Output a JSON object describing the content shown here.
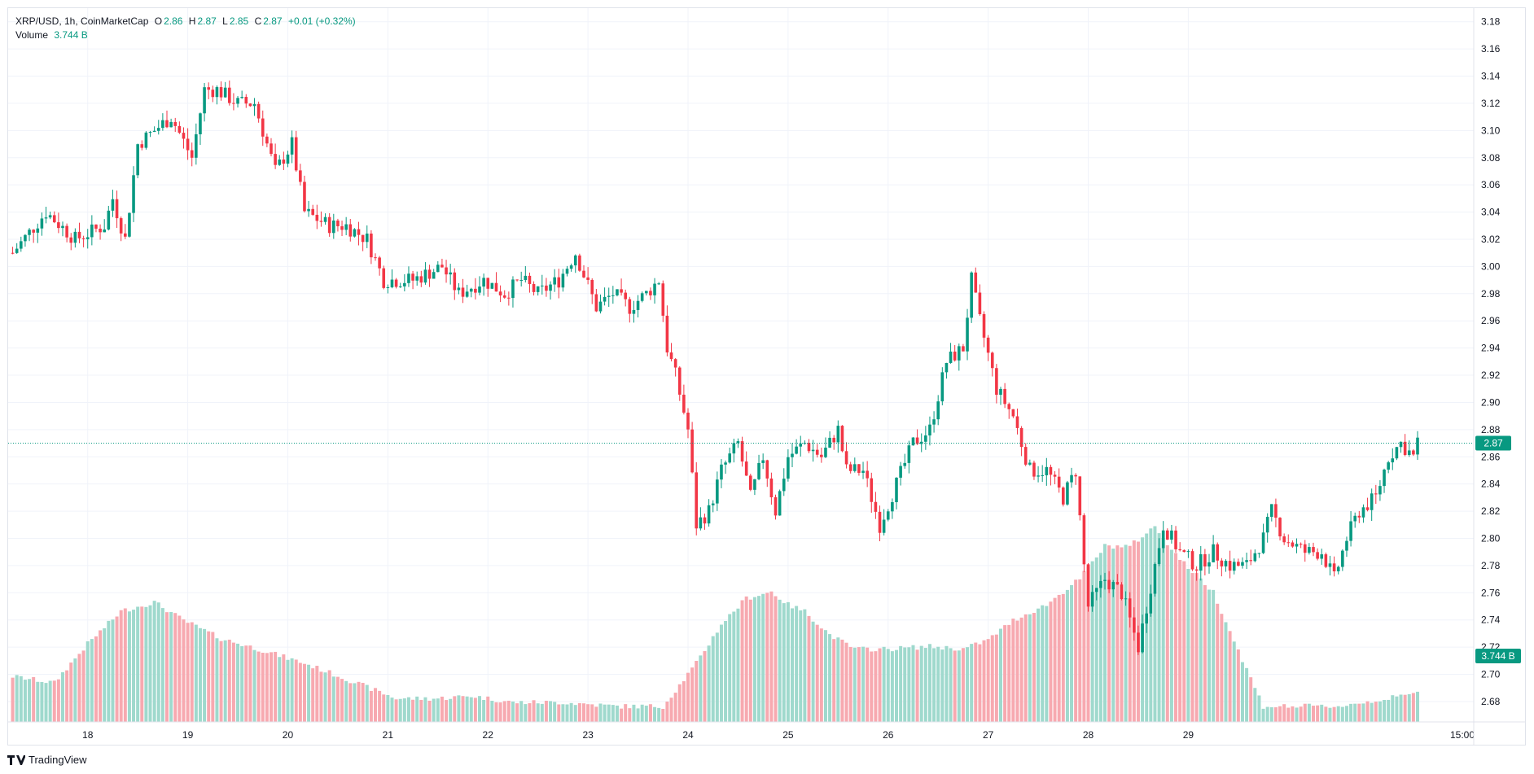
{
  "header": {
    "symbol_line": "XRP/USD, 1h, CoinMarketCap",
    "open_label": "O",
    "open_value": "2.86",
    "high_label": "H",
    "high_value": "2.87",
    "low_label": "L",
    "low_value": "2.85",
    "close_label": "C",
    "close_value": "2.87",
    "change": "+0.01 (+0.32%)",
    "volume_label": "Volume",
    "volume_value": "3.744 B"
  },
  "price_badge": "2.87",
  "volume_badge": "3.744 B",
  "brand": "TradingView",
  "colors": {
    "up": "#089981",
    "down": "#f23645",
    "vol_up": "#9fd9cd",
    "vol_down": "#f7a9b0",
    "grid": "#f0f3fa"
  },
  "chart_data": {
    "type": "candlestick",
    "interval": "1h",
    "y_ticks": [
      "3.18",
      "3.16",
      "3.14",
      "3.12",
      "3.10",
      "3.08",
      "3.06",
      "3.04",
      "3.02",
      "3.00",
      "2.98",
      "2.96",
      "2.94",
      "2.92",
      "2.90",
      "2.88",
      "2.86",
      "2.84",
      "2.82",
      "2.80",
      "2.78",
      "2.76",
      "2.74",
      "2.72",
      "2.70",
      "2.68"
    ],
    "ylim": [
      2.665,
      3.19
    ],
    "x_ticks": [
      "18",
      "19",
      "20",
      "21",
      "22",
      "23",
      "24",
      "25",
      "26",
      "27",
      "28",
      "29",
      "15:00"
    ],
    "last_price": 2.87,
    "last_volume": "3.744 B",
    "close_keys": [
      [
        0,
        3.01
      ],
      [
        8,
        3.04
      ],
      [
        15,
        3.02
      ],
      [
        22,
        3.03
      ],
      [
        24,
        3.05
      ],
      [
        27,
        3.02
      ],
      [
        30,
        3.09
      ],
      [
        38,
        3.11
      ],
      [
        43,
        3.08
      ],
      [
        46,
        3.13
      ],
      [
        49,
        3.13
      ],
      [
        54,
        3.12
      ],
      [
        58,
        3.12
      ],
      [
        63,
        3.07
      ],
      [
        67,
        3.09
      ],
      [
        70,
        3.04
      ],
      [
        76,
        3.03
      ],
      [
        80,
        3.03
      ],
      [
        85,
        3.02
      ],
      [
        89,
        2.99
      ],
      [
        96,
        2.99
      ],
      [
        103,
        3.0
      ],
      [
        107,
        2.98
      ],
      [
        113,
        2.99
      ],
      [
        118,
        2.98
      ],
      [
        122,
        2.99
      ],
      [
        126,
        2.98
      ],
      [
        131,
        2.99
      ],
      [
        135,
        3.01
      ],
      [
        140,
        2.97
      ],
      [
        144,
        2.98
      ],
      [
        148,
        2.97
      ],
      [
        152,
        2.98
      ],
      [
        155,
        2.99
      ],
      [
        157,
        2.94
      ],
      [
        159,
        2.92
      ],
      [
        162,
        2.88
      ],
      [
        164,
        2.81
      ],
      [
        167,
        2.82
      ],
      [
        170,
        2.85
      ],
      [
        174,
        2.87
      ],
      [
        177,
        2.83
      ],
      [
        180,
        2.86
      ],
      [
        183,
        2.82
      ],
      [
        186,
        2.86
      ],
      [
        190,
        2.87
      ],
      [
        194,
        2.86
      ],
      [
        198,
        2.88
      ],
      [
        200,
        2.85
      ],
      [
        204,
        2.85
      ],
      [
        208,
        2.81
      ],
      [
        212,
        2.84
      ],
      [
        216,
        2.87
      ],
      [
        220,
        2.88
      ],
      [
        224,
        2.93
      ],
      [
        228,
        2.94
      ],
      [
        230,
        2.99
      ],
      [
        232,
        2.96
      ],
      [
        236,
        2.91
      ],
      [
        240,
        2.89
      ],
      [
        244,
        2.85
      ],
      [
        248,
        2.85
      ],
      [
        252,
        2.83
      ],
      [
        255,
        2.85
      ],
      [
        257,
        2.78
      ],
      [
        258,
        2.75
      ],
      [
        262,
        2.77
      ],
      [
        266,
        2.76
      ],
      [
        268,
        2.74
      ],
      [
        270,
        2.72
      ],
      [
        272,
        2.75
      ],
      [
        274,
        2.78
      ],
      [
        276,
        2.81
      ],
      [
        280,
        2.79
      ],
      [
        284,
        2.78
      ],
      [
        288,
        2.79
      ],
      [
        292,
        2.78
      ],
      [
        296,
        2.78
      ],
      [
        300,
        2.8
      ],
      [
        302,
        2.82
      ],
      [
        305,
        2.8
      ],
      [
        310,
        2.79
      ],
      [
        314,
        2.79
      ],
      [
        317,
        2.77
      ],
      [
        320,
        2.8
      ],
      [
        323,
        2.82
      ],
      [
        327,
        2.83
      ],
      [
        330,
        2.86
      ],
      [
        333,
        2.87
      ],
      [
        336,
        2.86
      ],
      [
        337,
        2.87
      ]
    ],
    "volume_keys": [
      [
        0,
        0.35
      ],
      [
        10,
        0.3
      ],
      [
        18,
        0.6
      ],
      [
        26,
        0.85
      ],
      [
        34,
        0.92
      ],
      [
        41,
        0.78
      ],
      [
        50,
        0.64
      ],
      [
        60,
        0.55
      ],
      [
        70,
        0.45
      ],
      [
        80,
        0.33
      ],
      [
        92,
        0.18
      ],
      [
        102,
        0.18
      ],
      [
        110,
        0.2
      ],
      [
        120,
        0.15
      ],
      [
        132,
        0.15
      ],
      [
        145,
        0.12
      ],
      [
        156,
        0.12
      ],
      [
        158,
        0.2
      ],
      [
        164,
        0.45
      ],
      [
        170,
        0.75
      ],
      [
        176,
        0.95
      ],
      [
        182,
        1.0
      ],
      [
        186,
        0.9
      ],
      [
        190,
        0.85
      ],
      [
        196,
        0.67
      ],
      [
        202,
        0.56
      ],
      [
        210,
        0.56
      ],
      [
        220,
        0.58
      ],
      [
        228,
        0.56
      ],
      [
        234,
        0.63
      ],
      [
        240,
        0.78
      ],
      [
        248,
        0.9
      ],
      [
        256,
        1.1
      ],
      [
        262,
        1.35
      ],
      [
        268,
        1.35
      ],
      [
        274,
        1.5
      ],
      [
        280,
        1.25
      ],
      [
        288,
        1.0
      ],
      [
        294,
        0.55
      ],
      [
        300,
        0.12
      ],
      [
        310,
        0.12
      ],
      [
        318,
        0.12
      ],
      [
        330,
        0.18
      ],
      [
        337,
        0.22
      ]
    ]
  }
}
